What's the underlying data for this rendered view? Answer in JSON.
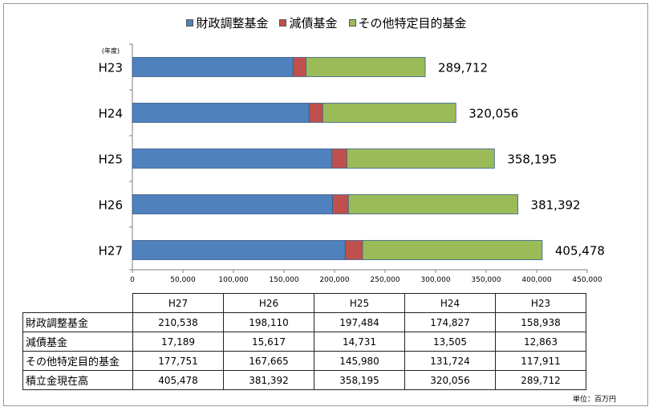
{
  "chart_data": {
    "type": "bar",
    "orientation": "horizontal",
    "stacked": true,
    "categories": [
      "H23",
      "H24",
      "H25",
      "H26",
      "H27"
    ],
    "year_label": "(年度)",
    "series": [
      {
        "name": "財政調整基金",
        "color": "#4f81bd",
        "values": [
          158938,
          174827,
          197484,
          198110,
          210538
        ]
      },
      {
        "name": "減債基金",
        "color": "#c0504d",
        "values": [
          12863,
          13505,
          14731,
          15617,
          17189
        ]
      },
      {
        "name": "その他特定目的基金",
        "color": "#9bbb59",
        "values": [
          117911,
          131724,
          145980,
          167665,
          177751
        ]
      }
    ],
    "totals": [
      "289,712",
      "320,056",
      "358,195",
      "381,392",
      "405,478"
    ],
    "total_values": [
      289712,
      320056,
      358195,
      381392,
      405478
    ],
    "xlim": [
      0,
      450000
    ],
    "xticks": [
      "0",
      "50,000",
      "100,000",
      "150,000",
      "200,000",
      "250,000",
      "300,000",
      "350,000",
      "400,000",
      "450,000"
    ],
    "grid": false,
    "legend_position": "top-center"
  },
  "table": {
    "columns": [
      "H27",
      "H26",
      "H25",
      "H24",
      "H23"
    ],
    "rows": [
      {
        "label": "財政調整基金",
        "values": [
          "210,538",
          "198,110",
          "197,484",
          "174,827",
          "158,938"
        ]
      },
      {
        "label": "減債基金",
        "values": [
          "17,189",
          "15,617",
          "14,731",
          "13,505",
          "12,863"
        ]
      },
      {
        "label": "その他特定目的基金",
        "values": [
          "177,751",
          "167,665",
          "145,980",
          "131,724",
          "117,911"
        ]
      },
      {
        "label": "積立金現在高",
        "values": [
          "405,478",
          "381,392",
          "358,195",
          "320,056",
          "289,712"
        ]
      }
    ]
  },
  "unit_note": "単位：百万円"
}
